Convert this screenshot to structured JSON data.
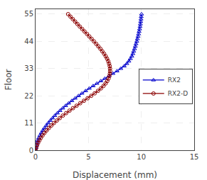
{
  "chart_data": {
    "type": "line",
    "xlabel": "Displacement (mm)",
    "ylabel": "Floor",
    "series": [
      {
        "name": "RX2",
        "color": "#0000cc",
        "marker": "triangle",
        "x": [
          0,
          0.03,
          0.07,
          0.13,
          0.2,
          0.3,
          0.41,
          0.54,
          0.68,
          0.84,
          1.01,
          1.19,
          1.39,
          1.6,
          1.82,
          2.06,
          2.31,
          2.57,
          2.84,
          3.13,
          3.43,
          3.74,
          4.06,
          4.39,
          4.73,
          5.08,
          5.44,
          5.8,
          6.17,
          6.55,
          6.93,
          7.32,
          7.7,
          8.06,
          8.38,
          8.63,
          8.82,
          8.97,
          9.1,
          9.2,
          9.28,
          9.36,
          9.43,
          9.5,
          9.57,
          9.63,
          9.69,
          9.74,
          9.79,
          9.84,
          9.88,
          9.91,
          9.94,
          9.97,
          9.99,
          10.02
        ],
        "values": [
          0,
          1,
          2,
          3,
          4,
          5,
          6,
          7,
          8,
          9,
          10,
          11,
          12,
          13,
          14,
          15,
          16,
          17,
          18,
          19,
          20,
          21,
          22,
          23,
          24,
          25,
          26,
          27,
          28,
          29,
          30,
          31,
          32,
          33,
          34,
          35,
          36,
          37,
          38,
          39,
          40,
          41,
          42,
          43,
          44,
          45,
          46,
          47,
          48,
          49,
          50,
          51,
          52,
          53,
          54,
          55
        ]
      },
      {
        "name": "RX2-D",
        "color": "#8b0000",
        "marker": "circle",
        "x": [
          0,
          0.06,
          0.14,
          0.24,
          0.36,
          0.5,
          0.66,
          0.84,
          1.04,
          1.26,
          1.49,
          1.74,
          2.01,
          2.29,
          2.58,
          2.89,
          3.21,
          3.54,
          3.88,
          4.22,
          4.57,
          4.92,
          5.26,
          5.59,
          5.9,
          6.18,
          6.42,
          6.62,
          6.78,
          6.9,
          6.98,
          7.03,
          7.05,
          7.04,
          7.01,
          6.95,
          6.87,
          6.76,
          6.63,
          6.48,
          6.31,
          6.13,
          5.93,
          5.73,
          5.52,
          5.3,
          5.08,
          4.86,
          4.63,
          4.41,
          4.18,
          3.96,
          3.74,
          3.52,
          3.3,
          3.08
        ],
        "values": [
          0,
          1,
          2,
          3,
          4,
          5,
          6,
          7,
          8,
          9,
          10,
          11,
          12,
          13,
          14,
          15,
          16,
          17,
          18,
          19,
          20,
          21,
          22,
          23,
          24,
          25,
          26,
          27,
          28,
          29,
          30,
          31,
          32,
          33,
          34,
          35,
          36,
          37,
          38,
          39,
          40,
          41,
          42,
          43,
          44,
          45,
          46,
          47,
          48,
          49,
          50,
          51,
          52,
          53,
          54,
          55
        ]
      }
    ],
    "xlim": [
      0,
      15
    ],
    "xticks": [
      0,
      5,
      10,
      15
    ],
    "ylim": [
      0,
      57
    ],
    "yticks": [
      0,
      11,
      22,
      33,
      44,
      55
    ],
    "grid": true,
    "legend": "right"
  }
}
